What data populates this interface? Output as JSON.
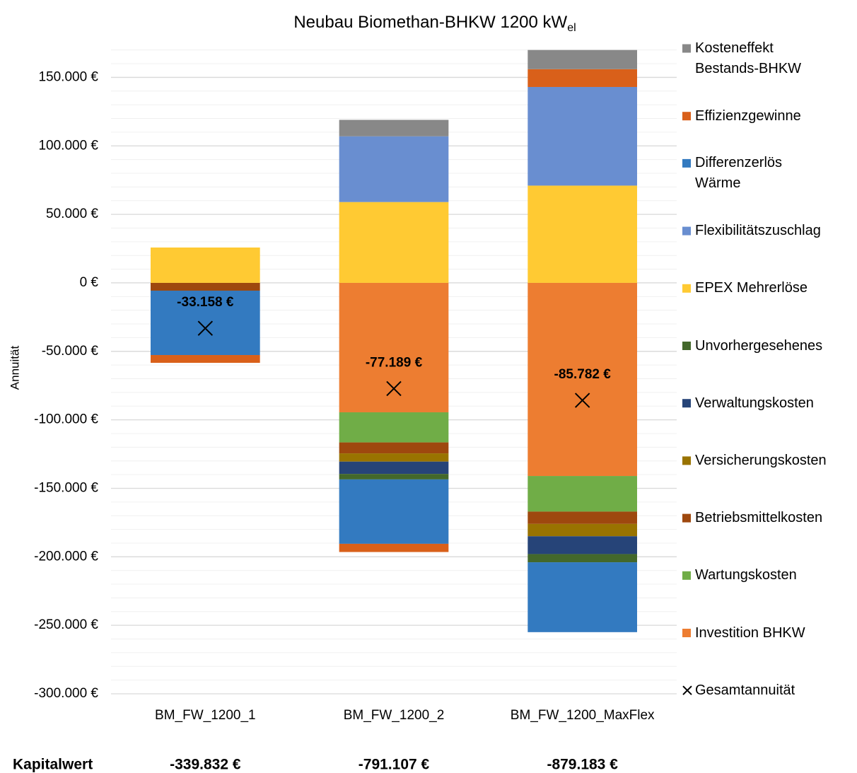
{
  "chart_data": {
    "type": "bar",
    "stacked": true,
    "title": "Neubau Biomethan-BHKW 1200 kW",
    "title_subscript": "el",
    "y_label": "Annuität",
    "categories": [
      "BM_FW_1200_1",
      "BM_FW_1200_2",
      "BM_FW_1200_MaxFlex"
    ],
    "ylim": [
      -300000,
      175000
    ],
    "yticks": [
      {
        "value": 150000,
        "label": "150.000 €"
      },
      {
        "value": 100000,
        "label": "100.000 €"
      },
      {
        "value": 50000,
        "label": "50.000 €"
      },
      {
        "value": 0,
        "label": "0 €"
      },
      {
        "value": -50000,
        "label": "-50.000 €"
      },
      {
        "value": -100000,
        "label": "-100.000 €"
      },
      {
        "value": -150000,
        "label": "-150.000 €"
      },
      {
        "value": -200000,
        "label": "-200.000 €"
      },
      {
        "value": -250000,
        "label": "-250.000 €"
      },
      {
        "value": -300000,
        "label": "-300.000 €"
      }
    ],
    "grid": true,
    "minor_grid_step": 10000,
    "legend": "right",
    "series": [
      {
        "name": "Investition BHKW",
        "color": "#ed7d31",
        "values": [
          0,
          -94500,
          -141000
        ]
      },
      {
        "name": "Wartungskosten",
        "color": "#70ad47",
        "values": [
          0,
          -22000,
          -26000
        ]
      },
      {
        "name": "Betriebsmittelkosten",
        "color": "#9e480e",
        "values": [
          -5700,
          -8000,
          -9000
        ]
      },
      {
        "name": "Versicherungskosten",
        "color": "#997300",
        "values": [
          0,
          -6000,
          -9000
        ]
      },
      {
        "name": "Verwaltungskosten",
        "color": "#264478",
        "values": [
          0,
          -9000,
          -13000
        ]
      },
      {
        "name": "Unvorhergesehenes",
        "color": "#43682b",
        "values": [
          0,
          -4000,
          -6000
        ]
      },
      {
        "name": "EPEX Mehrerlöse",
        "color": "#ffca33",
        "values": [
          25800,
          59000,
          71000
        ]
      },
      {
        "name": "Flexibilitätszuschlag",
        "color": "#698ed0",
        "values": [
          0,
          48000,
          72000
        ]
      },
      {
        "name": "Differenzerlös\nWärme",
        "color": "#337ac0",
        "values": [
          -47000,
          -47000,
          -51000
        ]
      },
      {
        "name": "Effizienzgewinne",
        "color": "#d9601a",
        "values": [
          -5700,
          -6000,
          13000
        ]
      },
      {
        "name": "Kosteneffekt\nBestands-BHKW",
        "color": "#888888",
        "values": [
          0,
          12000,
          14000
        ]
      }
    ],
    "total": {
      "name": "Gesamtannuität",
      "marker": "x",
      "color": "#000000",
      "values": [
        -33158,
        -77189,
        -85782
      ],
      "value_labels": [
        "-33.158 €",
        "-77.189 €",
        "-85.782 €"
      ]
    },
    "kapitalwert": {
      "label": "Kapitalwert",
      "values": [
        "-339.832 €",
        "-791.107 €",
        "-879.183 €"
      ]
    }
  }
}
